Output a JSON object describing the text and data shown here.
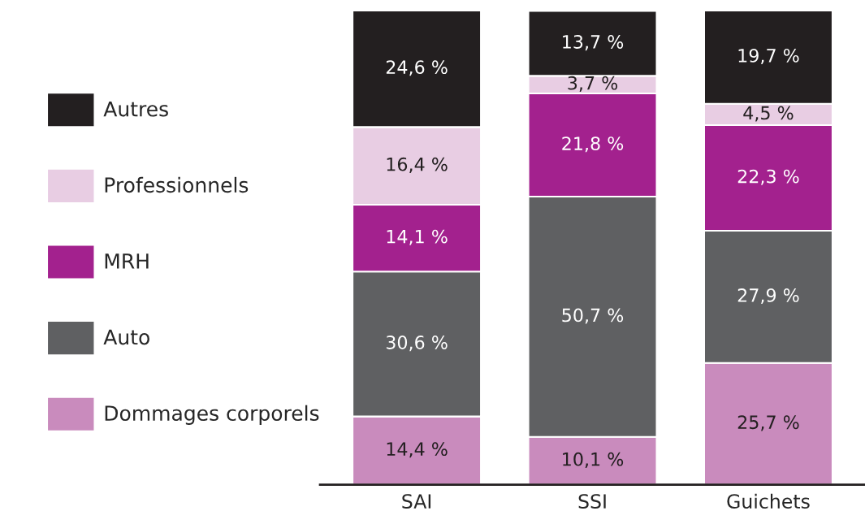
{
  "chart_data": {
    "type": "bar",
    "stacked": true,
    "legend": "left",
    "categories": [
      "SAI",
      "SSI",
      "Guichets"
    ],
    "series": [
      {
        "name": "Dommages corporels",
        "color": "#c98bbd",
        "values": [
          14.4,
          10.1,
          25.7
        ],
        "value_labels": [
          "14,4 %",
          "10,1 %",
          "25,7 %"
        ]
      },
      {
        "name": "Auto",
        "color": "#5f6062",
        "values": [
          30.6,
          50.7,
          27.9
        ],
        "value_labels": [
          "30,6 %",
          "50,7 %",
          "27,9 %"
        ]
      },
      {
        "name": "MRH",
        "color": "#a3218e",
        "values": [
          14.1,
          21.8,
          22.3
        ],
        "value_labels": [
          "14,1 %",
          "21,8 %",
          "22,3 %"
        ]
      },
      {
        "name": "Professionnels",
        "color": "#e8cde3",
        "values": [
          16.4,
          3.7,
          4.5
        ],
        "value_labels": [
          "16,4 %",
          "3,7 %",
          "4,5 %"
        ]
      },
      {
        "name": "Autres",
        "color": "#231f20",
        "values": [
          24.6,
          13.7,
          19.7
        ],
        "value_labels": [
          "24,6 %",
          "13,7 %",
          "19,7 %"
        ]
      }
    ]
  }
}
